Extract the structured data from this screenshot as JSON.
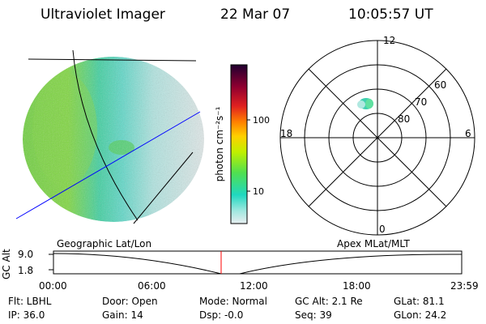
{
  "header": {
    "instrument": "Ultraviolet Imager",
    "date": "22 Mar 07",
    "time": "10:05:57 UT"
  },
  "colorbar": {
    "unit_label": "photon cm⁻²s⁻¹",
    "tick_labels": [
      "100",
      "10"
    ],
    "colors": [
      "#e8eef0",
      "#a0e8e0",
      "#20d8c0",
      "#50e050",
      "#c0f000",
      "#ffd000",
      "#ff8000",
      "#e02020",
      "#800020",
      "#200030"
    ]
  },
  "polar_plot": {
    "mlt_labels": {
      "top": "12",
      "left": "18",
      "right": "6",
      "bottom": "0"
    },
    "mlat_labels": [
      "60",
      "70",
      "80"
    ]
  },
  "timeline": {
    "left_label": "Geographic Lat/Lon",
    "right_label": "Apex MLat/MLT",
    "axis_label": "GC Alt",
    "y_max": "9.0",
    "y_min": "1.8",
    "x_ticks": [
      "00:00",
      "06:00",
      "12:00",
      "18:00",
      "23:59"
    ]
  },
  "info": {
    "flt": "Flt: LBHL",
    "ip": "IP: 36.0",
    "door": "Door: Open",
    "gain": "Gain: 14",
    "mode": "Mode: Normal",
    "dsp": "Dsp:    -0.0",
    "gcalt": "GC Alt: 2.1 Re",
    "seq": "Seq: 39",
    "glat": "GLat:   81.1",
    "glon": "GLon:   24.2"
  }
}
